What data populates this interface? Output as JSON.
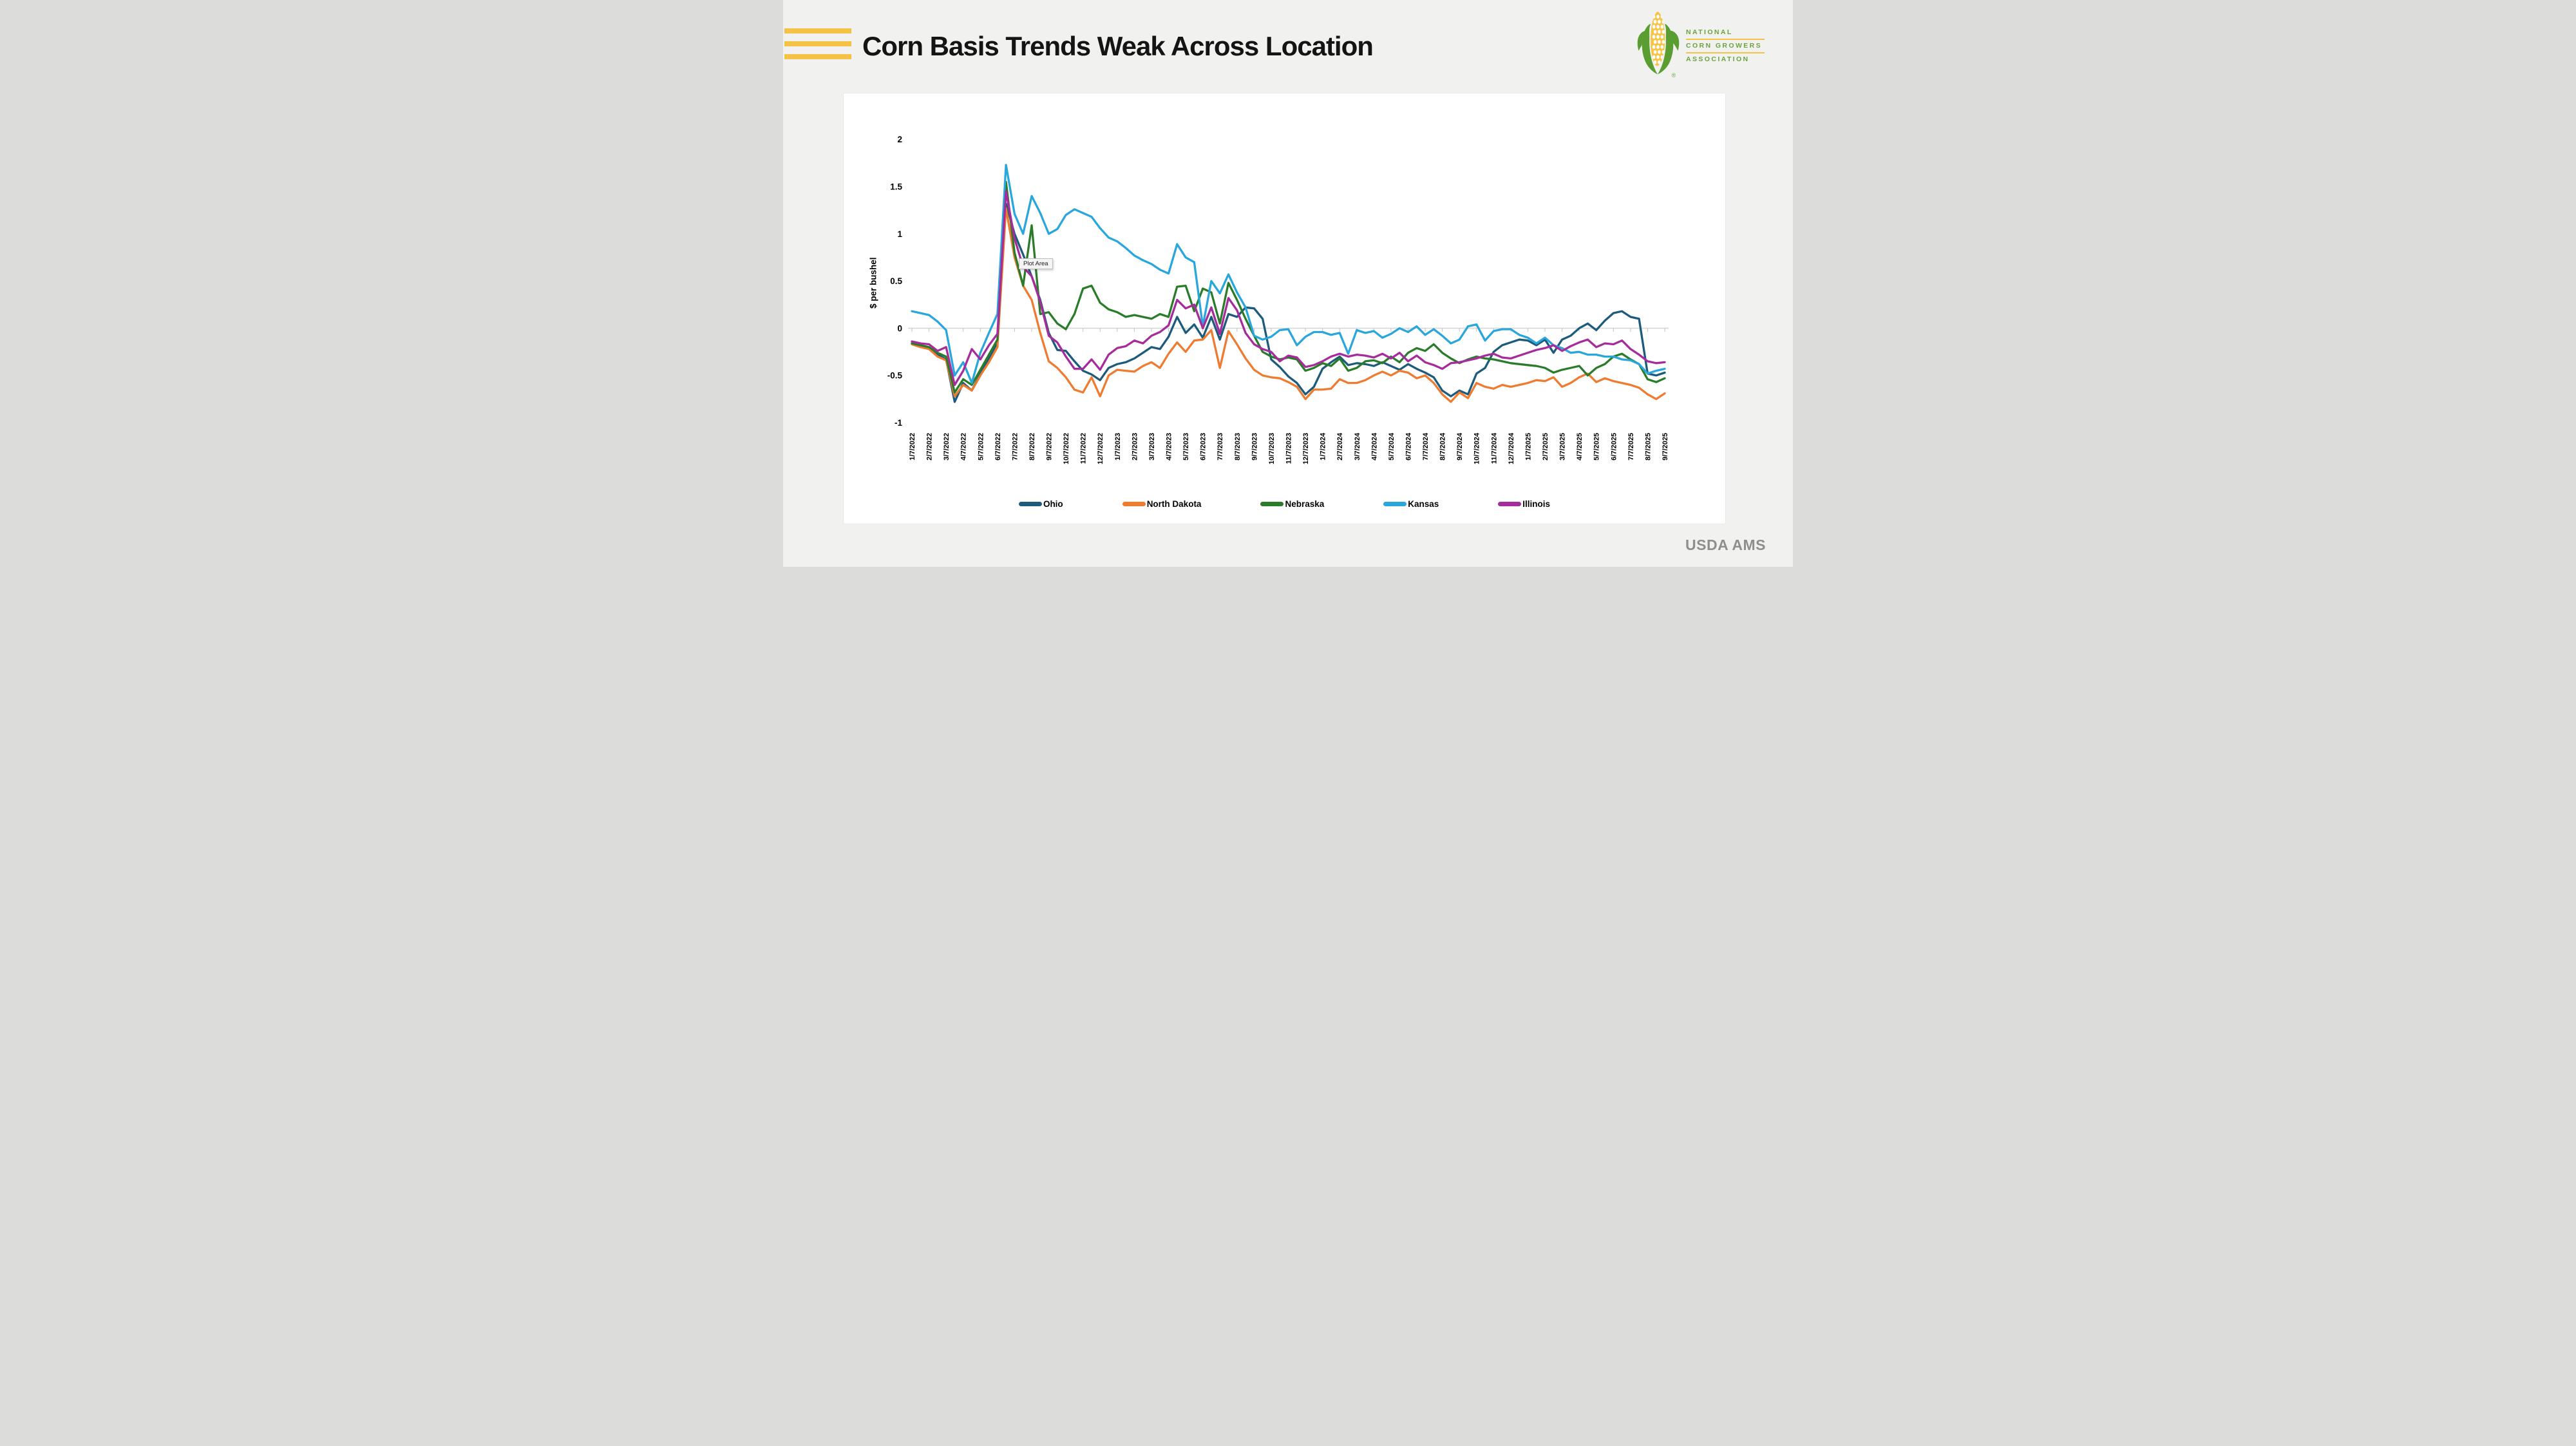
{
  "page": {
    "background": "#f1f1ef",
    "footer_credit": "USDA AMS"
  },
  "header": {
    "title": "Corn Basis Trends Weak Across Location",
    "accent_color": "#f4c244",
    "logo": {
      "line1": "NATIONAL",
      "line2": "CORN GROWERS",
      "line3": "ASSOCIATION",
      "reg_mark": "®",
      "text_color": "#6ba33c",
      "rule_color": "#f4c244",
      "husk_color": "#5a9e32",
      "ear_color": "#f7c445"
    }
  },
  "tooltip": {
    "text": "Plot Area"
  },
  "chart_data": {
    "type": "line",
    "title": "",
    "xlabel": "",
    "ylabel": "$ per bushel",
    "ylim": [
      -1,
      2
    ],
    "grid": "zero-line only",
    "legend_position": "bottom",
    "x_unit": "months since 1/7/2022 (series sampled semi-monthly)",
    "y_ticks": [
      {
        "value": 2,
        "label": "2"
      },
      {
        "value": 1.5,
        "label": "1.5"
      },
      {
        "value": 1,
        "label": "1"
      },
      {
        "value": 0.5,
        "label": "0.5"
      },
      {
        "value": 0,
        "label": "0"
      },
      {
        "value": -0.5,
        "label": "-0.5"
      },
      {
        "value": -1,
        "label": "-1"
      }
    ],
    "x_tick_labels": [
      "1/7/2022",
      "2/7/2022",
      "3/7/2022",
      "4/7/2022",
      "5/7/2022",
      "6/7/2022",
      "7/7/2022",
      "8/7/2022",
      "9/7/2022",
      "10/7/2022",
      "11/7/2022",
      "12/7/2022",
      "1/7/2023",
      "2/7/2023",
      "3/7/2023",
      "4/7/2023",
      "5/7/2023",
      "6/7/2023",
      "7/7/2023",
      "8/7/2023",
      "9/7/2023",
      "10/7/2023",
      "11/7/2023",
      "12/7/2023",
      "1/7/2024",
      "2/7/2024",
      "3/7/2024",
      "4/7/2024",
      "5/7/2024",
      "6/7/2024",
      "7/7/2024",
      "8/7/2024",
      "9/7/2024",
      "10/7/2024",
      "11/7/2024",
      "12/7/2024",
      "1/7/2025",
      "2/7/2025",
      "3/7/2025",
      "4/7/2025",
      "5/7/2025",
      "6/7/2025",
      "7/7/2025",
      "8/7/2025",
      "9/7/2025"
    ],
    "x_months": [
      0,
      0.5,
      1,
      1.5,
      2,
      2.5,
      3,
      3.5,
      4,
      4.5,
      5,
      5.5,
      6,
      6.5,
      7,
      7.5,
      8,
      8.5,
      9,
      9.5,
      10,
      10.5,
      11,
      11.5,
      12,
      12.5,
      13,
      13.5,
      14,
      14.5,
      15,
      15.5,
      16,
      16.5,
      17,
      17.5,
      18,
      18.5,
      19,
      19.5,
      20,
      20.5,
      21,
      21.5,
      22,
      22.5,
      23,
      23.5,
      24,
      24.5,
      25,
      25.5,
      26,
      26.5,
      27,
      27.5,
      28,
      28.5,
      29,
      29.5,
      30,
      30.5,
      31,
      31.5,
      32,
      32.5,
      33,
      33.5,
      34,
      34.5,
      35,
      35.5,
      36,
      36.5,
      37,
      37.5,
      38,
      38.5,
      39,
      39.5,
      40,
      40.5,
      41,
      41.5,
      42,
      42.5,
      43,
      43.5,
      44
    ],
    "series": [
      {
        "name": "Ohio",
        "color": "#1d5b7c",
        "values": [
          -0.16,
          -0.19,
          -0.21,
          -0.28,
          -0.33,
          -0.78,
          -0.58,
          -0.66,
          -0.48,
          -0.32,
          -0.15,
          1.32,
          1.0,
          0.78,
          0.55,
          0.3,
          -0.05,
          -0.23,
          -0.24,
          -0.35,
          -0.45,
          -0.49,
          -0.55,
          -0.42,
          -0.38,
          -0.36,
          -0.32,
          -0.26,
          -0.2,
          -0.22,
          -0.09,
          0.12,
          -0.05,
          0.04,
          -0.1,
          0.12,
          -0.12,
          0.15,
          0.12,
          0.22,
          0.21,
          0.1,
          -0.33,
          -0.41,
          -0.51,
          -0.58,
          -0.7,
          -0.62,
          -0.43,
          -0.36,
          -0.3,
          -0.39,
          -0.37,
          -0.38,
          -0.4,
          -0.36,
          -0.4,
          -0.44,
          -0.38,
          -0.43,
          -0.47,
          -0.52,
          -0.66,
          -0.72,
          -0.66,
          -0.7,
          -0.48,
          -0.42,
          -0.25,
          -0.18,
          -0.15,
          -0.12,
          -0.13,
          -0.18,
          -0.12,
          -0.26,
          -0.12,
          -0.08,
          0.0,
          0.05,
          -0.02,
          0.08,
          0.16,
          0.18,
          0.12,
          0.1,
          -0.48,
          -0.5,
          -0.47
        ]
      },
      {
        "name": "North Dakota",
        "color": "#ee7b2f",
        "values": [
          -0.17,
          -0.2,
          -0.22,
          -0.3,
          -0.34,
          -0.72,
          -0.6,
          -0.66,
          -0.5,
          -0.36,
          -0.2,
          1.27,
          0.75,
          0.45,
          0.3,
          -0.05,
          -0.35,
          -0.42,
          -0.52,
          -0.65,
          -0.68,
          -0.52,
          -0.72,
          -0.5,
          -0.44,
          -0.45,
          -0.46,
          -0.4,
          -0.36,
          -0.42,
          -0.27,
          -0.15,
          -0.25,
          -0.13,
          -0.12,
          -0.02,
          -0.42,
          -0.03,
          -0.17,
          -0.32,
          -0.44,
          -0.5,
          -0.52,
          -0.53,
          -0.57,
          -0.62,
          -0.75,
          -0.65,
          -0.65,
          -0.64,
          -0.54,
          -0.58,
          -0.58,
          -0.55,
          -0.5,
          -0.46,
          -0.5,
          -0.45,
          -0.47,
          -0.53,
          -0.5,
          -0.58,
          -0.7,
          -0.78,
          -0.68,
          -0.74,
          -0.58,
          -0.62,
          -0.64,
          -0.6,
          -0.62,
          -0.6,
          -0.58,
          -0.55,
          -0.56,
          -0.52,
          -0.62,
          -0.58,
          -0.52,
          -0.48,
          -0.57,
          -0.53,
          -0.56,
          -0.58,
          -0.6,
          -0.63,
          -0.7,
          -0.75,
          -0.69
        ]
      },
      {
        "name": "Nebraska",
        "color": "#2a7c2b",
        "values": [
          -0.16,
          -0.18,
          -0.2,
          -0.26,
          -0.3,
          -0.68,
          -0.54,
          -0.6,
          -0.44,
          -0.28,
          -0.12,
          1.55,
          0.8,
          0.45,
          1.09,
          0.15,
          0.17,
          0.05,
          -0.01,
          0.15,
          0.42,
          0.45,
          0.27,
          0.2,
          0.17,
          0.12,
          0.14,
          0.12,
          0.1,
          0.15,
          0.12,
          0.44,
          0.45,
          0.18,
          0.42,
          0.38,
          0.05,
          0.48,
          0.3,
          0.1,
          -0.08,
          -0.25,
          -0.3,
          -0.33,
          -0.31,
          -0.33,
          -0.45,
          -0.42,
          -0.37,
          -0.4,
          -0.32,
          -0.45,
          -0.42,
          -0.35,
          -0.34,
          -0.37,
          -0.3,
          -0.36,
          -0.26,
          -0.21,
          -0.24,
          -0.17,
          -0.26,
          -0.32,
          -0.37,
          -0.33,
          -0.3,
          -0.32,
          -0.33,
          -0.35,
          -0.37,
          -0.38,
          -0.39,
          -0.4,
          -0.42,
          -0.47,
          -0.44,
          -0.42,
          -0.4,
          -0.5,
          -0.42,
          -0.38,
          -0.3,
          -0.27,
          -0.33,
          -0.38,
          -0.54,
          -0.57,
          -0.53
        ]
      },
      {
        "name": "Kansas",
        "color": "#29a6db",
        "values": [
          0.18,
          0.16,
          0.14,
          0.07,
          -0.02,
          -0.5,
          -0.36,
          -0.58,
          -0.26,
          -0.05,
          0.15,
          1.73,
          1.21,
          1.0,
          1.4,
          1.22,
          1.0,
          1.05,
          1.2,
          1.26,
          1.22,
          1.18,
          1.06,
          0.96,
          0.92,
          0.85,
          0.77,
          0.72,
          0.68,
          0.62,
          0.58,
          0.89,
          0.75,
          0.7,
          0.02,
          0.5,
          0.37,
          0.57,
          0.38,
          0.22,
          -0.08,
          -0.12,
          -0.09,
          -0.02,
          -0.01,
          -0.18,
          -0.09,
          -0.04,
          -0.04,
          -0.07,
          -0.05,
          -0.27,
          -0.02,
          -0.05,
          -0.03,
          -0.1,
          -0.06,
          0.0,
          -0.04,
          0.02,
          -0.07,
          -0.01,
          -0.08,
          -0.16,
          -0.12,
          0.02,
          0.04,
          -0.13,
          -0.03,
          -0.01,
          -0.01,
          -0.07,
          -0.1,
          -0.16,
          -0.1,
          -0.18,
          -0.21,
          -0.26,
          -0.25,
          -0.28,
          -0.28,
          -0.3,
          -0.3,
          -0.33,
          -0.34,
          -0.38,
          -0.48,
          -0.45,
          -0.43
        ]
      },
      {
        "name": "Illinois",
        "color": "#a62c9c",
        "values": [
          -0.14,
          -0.16,
          -0.17,
          -0.24,
          -0.2,
          -0.6,
          -0.45,
          -0.22,
          -0.33,
          -0.18,
          -0.06,
          1.45,
          0.95,
          0.65,
          0.55,
          0.28,
          -0.08,
          -0.15,
          -0.3,
          -0.43,
          -0.43,
          -0.33,
          -0.44,
          -0.28,
          -0.21,
          -0.19,
          -0.13,
          -0.16,
          -0.08,
          -0.04,
          0.03,
          0.3,
          0.21,
          0.25,
          0.0,
          0.22,
          -0.06,
          0.32,
          0.19,
          -0.05,
          -0.17,
          -0.22,
          -0.25,
          -0.35,
          -0.29,
          -0.31,
          -0.41,
          -0.39,
          -0.35,
          -0.3,
          -0.27,
          -0.3,
          -0.28,
          -0.29,
          -0.31,
          -0.27,
          -0.32,
          -0.26,
          -0.35,
          -0.29,
          -0.36,
          -0.39,
          -0.43,
          -0.37,
          -0.36,
          -0.34,
          -0.32,
          -0.29,
          -0.27,
          -0.31,
          -0.32,
          -0.29,
          -0.26,
          -0.23,
          -0.21,
          -0.18,
          -0.24,
          -0.19,
          -0.15,
          -0.12,
          -0.2,
          -0.16,
          -0.17,
          -0.13,
          -0.22,
          -0.28,
          -0.35,
          -0.37,
          -0.36
        ]
      }
    ]
  }
}
